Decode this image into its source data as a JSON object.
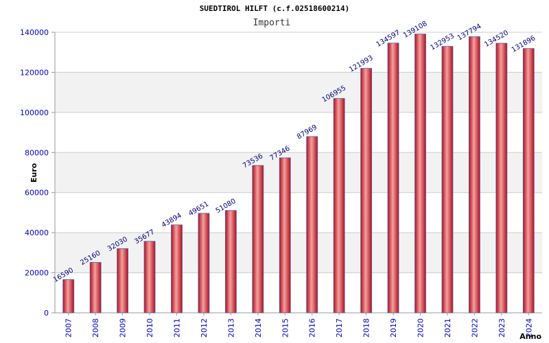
{
  "chart_data": {
    "type": "bar",
    "title": "SUEDTIROL HILFT (c.f.02518600214)",
    "subtitle": "Importi",
    "xlabel": "Anno",
    "ylabel": "Euro",
    "ylim": [
      0,
      140000
    ],
    "yticks": [
      0,
      20000,
      40000,
      60000,
      80000,
      100000,
      120000,
      140000
    ],
    "ytick_labels": [
      "0",
      "20000",
      "40000",
      "60000",
      "80000",
      "100000",
      "120000",
      "140000"
    ],
    "categories": [
      "2007",
      "2008",
      "2009",
      "2010",
      "2011",
      "2012",
      "2013",
      "2014",
      "2015",
      "2016",
      "2017",
      "2018",
      "2019",
      "2020",
      "2021",
      "2022",
      "2023",
      "2024"
    ],
    "values": [
      16590,
      25160,
      32030,
      35677,
      43894,
      49651,
      51080,
      73536,
      77346,
      87969,
      106955,
      121993,
      134597,
      139108,
      132953,
      137794,
      134520,
      131896
    ],
    "data_labels": [
      "16590",
      "25160",
      "32030",
      "35677",
      "43894",
      "49651",
      "51080",
      "73536",
      "77346",
      "87969",
      "106955",
      "121993",
      "134597",
      "139108",
      "132953",
      "137794",
      "134520",
      "131896"
    ],
    "grid": true,
    "colors": {
      "bar_light": "#f4a0a0",
      "bar_mid": "#e8303a",
      "bar_dark": "#b0101c",
      "bar_edge": "#5a5aa0",
      "band": "#f2f2f2",
      "grid": "#cccccc"
    }
  }
}
